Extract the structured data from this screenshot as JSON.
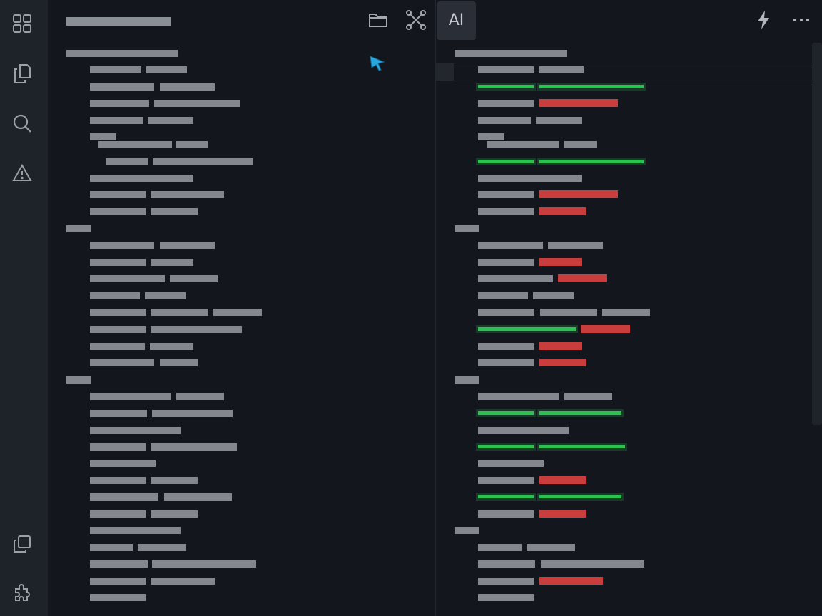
{
  "toolbar": {
    "ai_label": "AI",
    "icons": [
      "folder-icon",
      "branch-network-icon",
      "ai-icon",
      "lightning-icon",
      "more-icon"
    ]
  },
  "activity_bar": {
    "icons": [
      "grid-icon",
      "copy-files-icon",
      "search-icon",
      "warning-icon",
      "duplicate-icon",
      "puzzle-icon"
    ]
  },
  "colors": {
    "background": "#13161c",
    "activity_bar": "#1e2229",
    "placeholder_text": "#8a8e95",
    "added": "#2ecc55",
    "removed": "#d3403f",
    "cursor": "#29a8e0"
  }
}
